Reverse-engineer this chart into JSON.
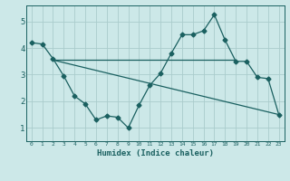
{
  "background_color": "#cce8e8",
  "grid_color": "#aacccc",
  "line_color": "#1a6060",
  "xlabel": "Humidex (Indice chaleur)",
  "xlim": [
    -0.5,
    23.5
  ],
  "ylim": [
    0.5,
    5.6
  ],
  "yticks": [
    1,
    2,
    3,
    4,
    5
  ],
  "xticks": [
    0,
    1,
    2,
    3,
    4,
    5,
    6,
    7,
    8,
    9,
    10,
    11,
    12,
    13,
    14,
    15,
    16,
    17,
    18,
    19,
    20,
    21,
    22,
    23
  ],
  "curve1_x": [
    0,
    1,
    2,
    3,
    4,
    5,
    6,
    7,
    8,
    9,
    10,
    11,
    12,
    13,
    14,
    15,
    16,
    17,
    18,
    19,
    20,
    21,
    22,
    23
  ],
  "curve1_y": [
    4.2,
    4.15,
    3.6,
    2.95,
    2.2,
    1.9,
    1.3,
    1.45,
    1.4,
    1.0,
    1.85,
    2.6,
    3.05,
    3.8,
    4.5,
    4.5,
    4.65,
    5.25,
    4.3,
    3.5,
    3.5,
    2.9,
    2.85,
    1.5
  ],
  "curve2_x": [
    2,
    19
  ],
  "curve2_y": [
    3.55,
    3.55
  ],
  "curve3_x": [
    2,
    23
  ],
  "curve3_y": [
    3.55,
    1.5
  ],
  "marker_x": [
    0,
    1,
    2,
    3,
    4,
    5,
    6,
    7,
    8,
    9,
    10,
    11,
    12,
    13,
    14,
    15,
    16,
    17,
    18,
    19,
    20,
    21,
    22,
    23
  ],
  "marker_y": [
    4.2,
    4.15,
    3.6,
    2.95,
    2.2,
    1.9,
    1.3,
    1.45,
    1.4,
    1.0,
    1.85,
    2.6,
    3.05,
    3.8,
    4.5,
    4.5,
    4.65,
    5.25,
    4.3,
    3.5,
    3.5,
    2.9,
    2.85,
    1.5
  ]
}
